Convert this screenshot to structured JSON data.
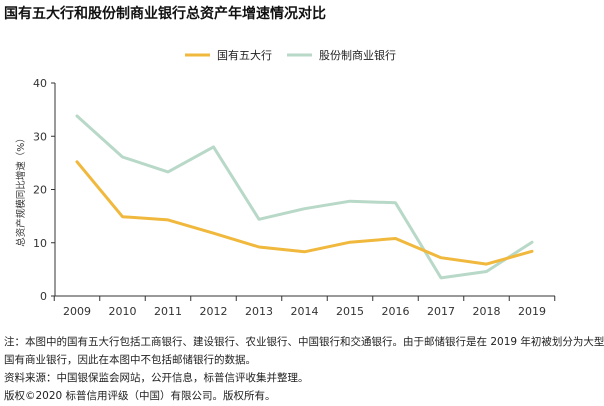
{
  "title": "国有五大行和股份制商业银行总资产年增速情况对比",
  "chart_data": {
    "type": "line",
    "title": "国有五大行和股份制商业银行总资产年增速情况对比",
    "xlabel": "",
    "ylabel": "总资产规模同比增速（%）",
    "ylim": [
      0,
      40
    ],
    "yticks": [
      "0",
      "10",
      "20",
      "30",
      "40"
    ],
    "categories": [
      "2009",
      "2010",
      "2011",
      "2012",
      "2013",
      "2014",
      "2015",
      "2016",
      "2017",
      "2018",
      "2019"
    ],
    "series": [
      {
        "name": "国有五大行",
        "color": "#f0b83c",
        "values": [
          25.2,
          14.9,
          14.3,
          11.8,
          9.2,
          8.3,
          10.1,
          10.8,
          7.2,
          6.0,
          8.4
        ]
      },
      {
        "name": "股份制商业银行",
        "color": "#b8d8c8",
        "values": [
          33.8,
          26.1,
          23.3,
          28.0,
          14.4,
          16.4,
          17.8,
          17.5,
          3.4,
          4.6,
          10.1
        ]
      }
    ],
    "legend": "top",
    "grid": false
  },
  "notes": {
    "line1": "注：本图中的国有五大行包括工商银行、建设银行、农业银行、中国银行和交通银行。由于邮储银行是在 2019 年初被划分为大型",
    "line2": "国有商业银行，因此在本图中不包括邮储银行的数据。",
    "line3": "资料来源：中国银保监会网站，公开信息，标普信评收集并整理。",
    "line4": "版权©2020 标普信用评级（中国）有限公司。版权所有。"
  }
}
